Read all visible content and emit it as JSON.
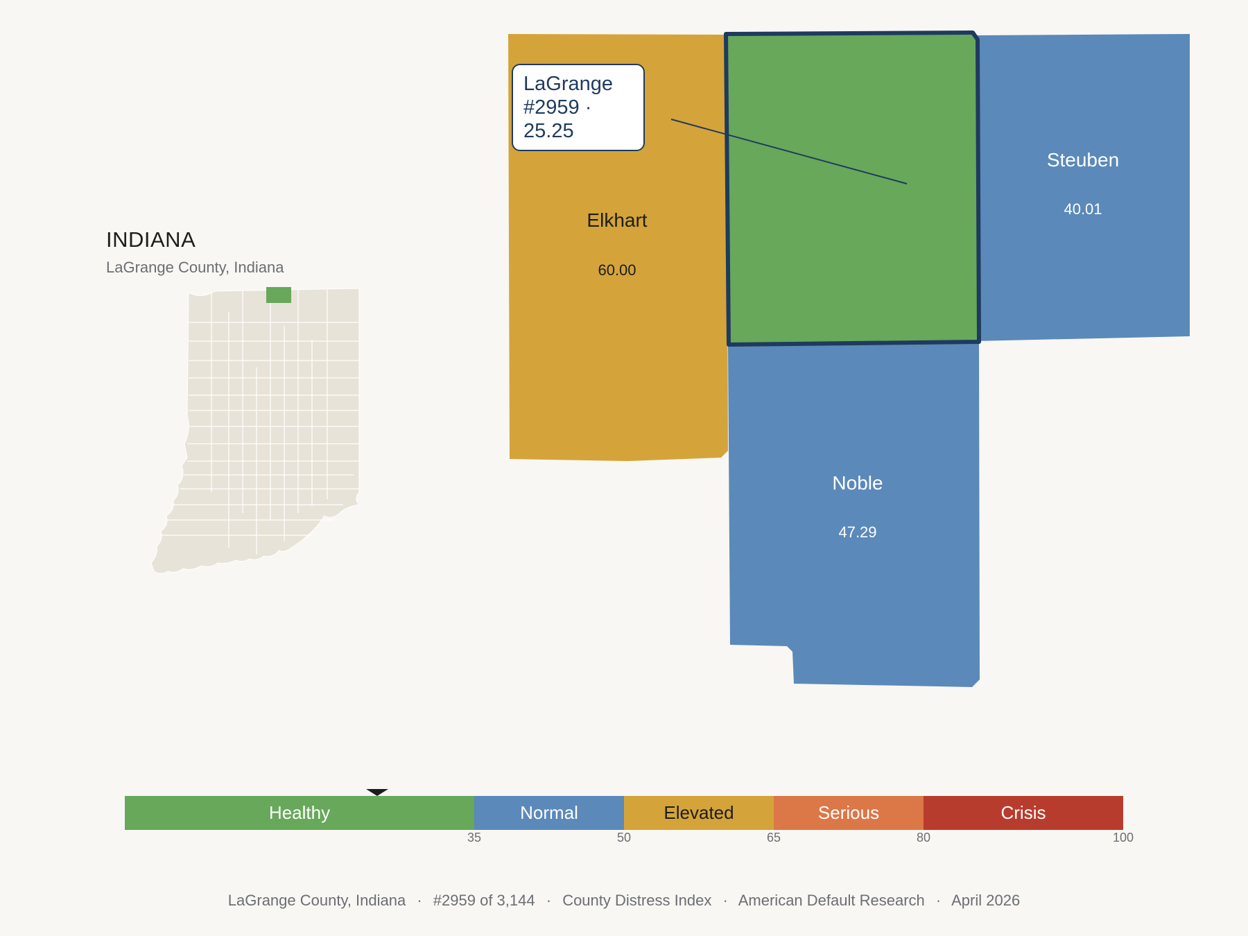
{
  "state": {
    "title": "INDIANA",
    "subtitle": "LaGrange County, Indiana"
  },
  "map": {
    "counties": [
      {
        "id": "elkhart",
        "name": "Elkhart",
        "value": "60.00",
        "category": "Elevated",
        "color": "#d4a43a",
        "text_color": "#1d1d1d"
      },
      {
        "id": "lagrange",
        "name": "LaGrange",
        "value": "25.25",
        "category": "Healthy",
        "color": "#67a85a",
        "selected": true
      },
      {
        "id": "steuben",
        "name": "Steuben",
        "value": "40.01",
        "category": "Normal",
        "color": "#5b89b9",
        "text_color": "#ffffff"
      },
      {
        "id": "noble",
        "name": "Noble",
        "value": "47.29",
        "category": "Normal",
        "color": "#5b89b9",
        "text_color": "#ffffff"
      }
    ],
    "callout": {
      "line1": "LaGrange",
      "line2": "#2959 · 25.25"
    },
    "highlight_color": "#1f3a5e",
    "locator_fill": "#e8e3d8",
    "locator_highlight": "#67a85a"
  },
  "scale": {
    "current_value": 25.25,
    "min": 0,
    "max": 100,
    "segments": [
      {
        "label": "Healthy",
        "from": 0,
        "to": 35,
        "color": "#67a85a",
        "text_color": "#ffffff"
      },
      {
        "label": "Normal",
        "from": 35,
        "to": 50,
        "color": "#5b89b9",
        "text_color": "#ffffff"
      },
      {
        "label": "Elevated",
        "from": 50,
        "to": 65,
        "color": "#d4a43a",
        "text_color": "#1d1d1d"
      },
      {
        "label": "Serious",
        "from": 65,
        "to": 80,
        "color": "#dc7747",
        "text_color": "#ffffff"
      },
      {
        "label": "Crisis",
        "from": 80,
        "to": 100,
        "color": "#b83c2d",
        "text_color": "#ffffff"
      }
    ],
    "ticks": [
      "35",
      "50",
      "65",
      "80",
      "100"
    ]
  },
  "footer": {
    "items": [
      "LaGrange County, Indiana",
      "#2959 of 3,144",
      "County Distress Index",
      "American Default Research",
      "April 2026"
    ],
    "separator": "·"
  }
}
